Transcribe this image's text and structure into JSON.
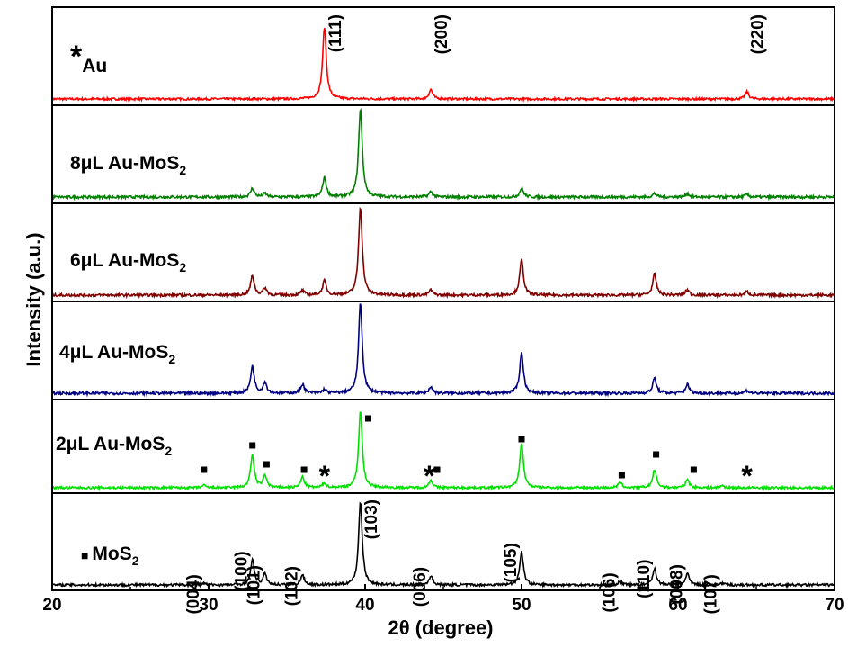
{
  "chart_data": {
    "type": "line",
    "title": "",
    "xlabel": "2θ (degree)",
    "ylabel": "Intensity (a.u.)",
    "xlim": [
      20,
      70
    ],
    "xticks": [
      "20",
      "30",
      "40",
      "50",
      "60",
      "70"
    ],
    "y_tick_labels_shown": false,
    "grid": false,
    "legend": "none",
    "panels": [
      {
        "label": "Au",
        "label_prefix_symbol": "*",
        "color": "#ff0000",
        "peaks": [
          [
            37.4,
            1.0
          ],
          [
            44.2,
            0.13
          ],
          [
            64.4,
            0.1
          ]
        ],
        "annotations": [
          {
            "text": "(111)",
            "x": 37.4
          },
          {
            "text": "(200)",
            "x": 44.2
          },
          {
            "text": "(220)",
            "x": 64.4
          }
        ]
      },
      {
        "label": "8μL Au-MoS",
        "label_subscript": "2",
        "color": "#008000",
        "peaks": [
          [
            32.8,
            0.1
          ],
          [
            33.6,
            0.04
          ],
          [
            37.4,
            0.22
          ],
          [
            39.7,
            1.0
          ],
          [
            44.2,
            0.06
          ],
          [
            50.0,
            0.1
          ],
          [
            58.5,
            0.04
          ],
          [
            60.6,
            0.04
          ],
          [
            64.4,
            0.03
          ]
        ]
      },
      {
        "label": "6μL Au-MoS",
        "label_subscript": "2",
        "color": "#800000",
        "peaks": [
          [
            32.8,
            0.22
          ],
          [
            33.6,
            0.08
          ],
          [
            36.0,
            0.05
          ],
          [
            37.4,
            0.16
          ],
          [
            39.7,
            1.0
          ],
          [
            44.2,
            0.06
          ],
          [
            50.0,
            0.4
          ],
          [
            58.5,
            0.24
          ],
          [
            60.6,
            0.06
          ],
          [
            64.4,
            0.04
          ]
        ]
      },
      {
        "label": "4μL Au-MoS",
        "label_subscript": "2",
        "color": "#000080",
        "peaks": [
          [
            32.8,
            0.3
          ],
          [
            33.6,
            0.12
          ],
          [
            36.0,
            0.1
          ],
          [
            37.4,
            0.04
          ],
          [
            39.7,
            1.0
          ],
          [
            44.2,
            0.07
          ],
          [
            50.0,
            0.45
          ],
          [
            58.5,
            0.17
          ],
          [
            60.6,
            0.1
          ],
          [
            64.4,
            0.03
          ]
        ]
      },
      {
        "label": "2μL Au-MoS",
        "label_subscript": "2",
        "color": "#00e000",
        "peaks": [
          [
            29.7,
            0.03
          ],
          [
            32.8,
            0.43
          ],
          [
            33.6,
            0.16
          ],
          [
            36.0,
            0.14
          ],
          [
            37.4,
            0.06
          ],
          [
            39.7,
            1.0
          ],
          [
            44.2,
            0.1
          ],
          [
            50.0,
            0.58
          ],
          [
            56.3,
            0.07
          ],
          [
            58.5,
            0.24
          ],
          [
            60.6,
            0.11
          ],
          [
            62.8,
            0.03
          ]
        ],
        "markers": [
          {
            "symbol": "■",
            "x": 29.7
          },
          {
            "symbol": "■",
            "x": 32.8
          },
          {
            "symbol": "■",
            "x": 33.7
          },
          {
            "symbol": "■",
            "x": 36.1
          },
          {
            "symbol": "*",
            "x": 37.4
          },
          {
            "symbol": "■",
            "x": 40.2
          },
          {
            "symbol": "*",
            "x": 44.1
          },
          {
            "symbol": "■",
            "x": 44.6
          },
          {
            "symbol": "■",
            "x": 50.0
          },
          {
            "symbol": "■",
            "x": 56.4
          },
          {
            "symbol": "■",
            "x": 58.6
          },
          {
            "symbol": "■",
            "x": 61.0
          },
          {
            "symbol": "*",
            "x": 64.4
          }
        ]
      },
      {
        "label": "MoS",
        "label_subscript": "2",
        "label_prefix_symbol": "■",
        "color": "#000000",
        "peaks": [
          [
            29.7,
            0.02
          ],
          [
            32.8,
            0.3
          ],
          [
            33.6,
            0.13
          ],
          [
            36.0,
            0.12
          ],
          [
            39.7,
            1.0
          ],
          [
            44.2,
            0.11
          ],
          [
            50.0,
            0.4
          ],
          [
            56.3,
            0.04
          ],
          [
            58.5,
            0.2
          ],
          [
            60.6,
            0.14
          ],
          [
            62.8,
            0.02
          ]
        ],
        "annotations": [
          {
            "text": "(004)",
            "x": 29.7
          },
          {
            "text": "(100)",
            "x": 32.8
          },
          {
            "text": "(101)",
            "x": 33.6
          },
          {
            "text": "(102)",
            "x": 36.0
          },
          {
            "text": "(103)",
            "x": 39.7
          },
          {
            "text": "(006)",
            "x": 44.2
          },
          {
            "text": "(105)",
            "x": 50.0
          },
          {
            "text": "(106)",
            "x": 56.3
          },
          {
            "text": "(110)",
            "x": 58.5
          },
          {
            "text": "(008)",
            "x": 60.6
          },
          {
            "text": "(107)",
            "x": 62.8
          }
        ]
      }
    ]
  }
}
